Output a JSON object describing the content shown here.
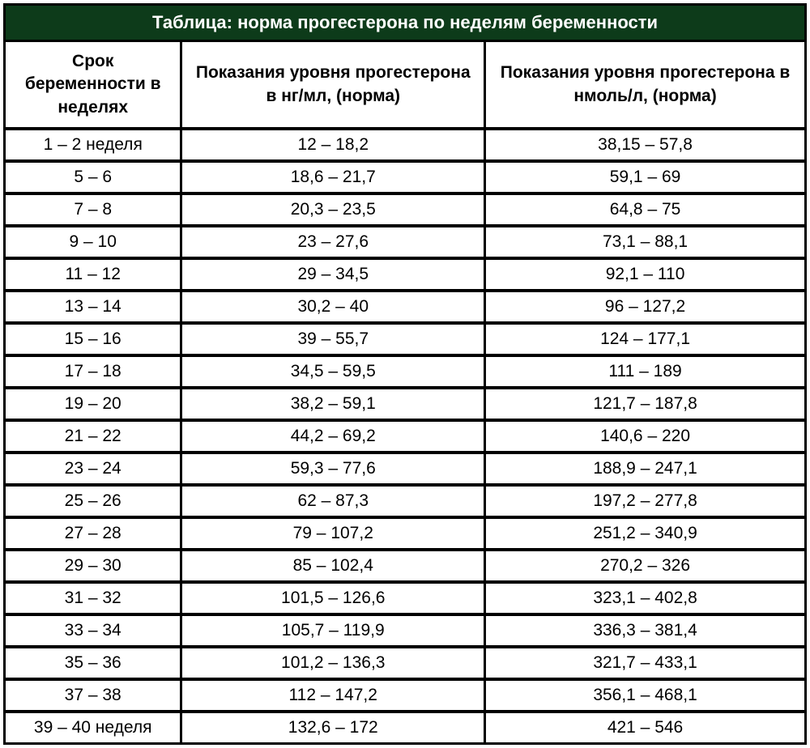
{
  "table": {
    "title": "Таблица: норма прогестерона по неделям беременности",
    "title_bg_color": "#0d3b1a",
    "title_text_color": "#ffffff",
    "title_fontsize": 22,
    "border_color": "#000000",
    "outer_border_width": 3,
    "row_border_width": 4,
    "col_border_width": 3,
    "cell_bg_color": "#ffffff",
    "cell_text_color": "#000000",
    "header_fontsize": 21,
    "body_fontsize": 21,
    "columns": [
      {
        "label": "Срок беременности в неделях",
        "width_pct": 22
      },
      {
        "label": "Показания уровня прогестерона в нг/мл, (норма)",
        "width_pct": 38
      },
      {
        "label": "Показания уровня прогестерона в нмоль/л, (норма)",
        "width_pct": 40
      }
    ],
    "rows": [
      [
        "1 – 2 неделя",
        "12 – 18,2",
        "38,15 – 57,8"
      ],
      [
        "5 – 6",
        "18,6 – 21,7",
        "59,1 – 69"
      ],
      [
        "7 – 8",
        "20,3 – 23,5",
        "64,8 – 75"
      ],
      [
        "9 – 10",
        "23 – 27,6",
        "73,1 – 88,1"
      ],
      [
        "11 – 12",
        "29 – 34,5",
        "92,1 – 110"
      ],
      [
        "13 – 14",
        "30,2 – 40",
        "96 – 127,2"
      ],
      [
        "15 – 16",
        "39 – 55,7",
        "124 – 177,1"
      ],
      [
        "17 – 18",
        "34,5 – 59,5",
        "111 – 189"
      ],
      [
        "19 – 20",
        "38,2 – 59,1",
        "121,7 – 187,8"
      ],
      [
        "21 – 22",
        "44,2 – 69,2",
        "140,6 – 220"
      ],
      [
        "23 – 24",
        "59,3 – 77,6",
        "188,9 – 247,1"
      ],
      [
        "25 – 26",
        "62 – 87,3",
        "197,2 – 277,8"
      ],
      [
        "27 – 28",
        "79 – 107,2",
        "251,2 – 340,9"
      ],
      [
        "29 – 30",
        "85 – 102,4",
        "270,2 – 326"
      ],
      [
        "31 – 32",
        "101,5 – 126,6",
        "323,1 – 402,8"
      ],
      [
        "33 – 34",
        "105,7 – 119,9",
        "336,3 – 381,4"
      ],
      [
        "35 – 36",
        "101,2 – 136,3",
        "321,7 – 433,1"
      ],
      [
        "37 – 38",
        "112 – 147,2",
        "356,1 – 468,1"
      ],
      [
        "39 – 40 неделя",
        "132,6 – 172",
        "421 – 546"
      ]
    ]
  }
}
